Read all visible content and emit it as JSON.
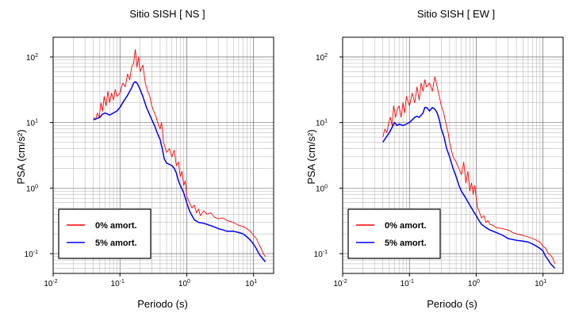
{
  "chart_data": [
    {
      "type": "line",
      "title": "Sitio SISH [ NS ]",
      "xlabel": "Periodo (s)",
      "ylabel": "PSA (cm/s²)",
      "xscale": "log",
      "yscale": "log",
      "xlim": [
        0.01,
        20
      ],
      "ylim": [
        0.05,
        200
      ],
      "x_ticks": [
        {
          "value": 0.01,
          "base": "10",
          "exp": "-2"
        },
        {
          "value": 0.1,
          "base": "10",
          "exp": "-1"
        },
        {
          "value": 1,
          "base": "10",
          "exp": "0"
        },
        {
          "value": 10,
          "base": "10",
          "exp": "1"
        }
      ],
      "y_ticks": [
        {
          "value": 0.1,
          "base": "10",
          "exp": "-1"
        },
        {
          "value": 1,
          "base": "10",
          "exp": "0"
        },
        {
          "value": 10,
          "base": "10",
          "exp": "1"
        },
        {
          "value": 100,
          "base": "10",
          "exp": "2"
        }
      ],
      "grid": true,
      "legend_position": "bottom-left",
      "series": [
        {
          "name": "0% amort.",
          "color": "#ff0000",
          "points": [
            [
              0.04,
              12
            ],
            [
              0.043,
              11
            ],
            [
              0.046,
              14
            ],
            [
              0.049,
              12
            ],
            [
              0.052,
              20
            ],
            [
              0.055,
              15
            ],
            [
              0.058,
              25
            ],
            [
              0.062,
              18
            ],
            [
              0.066,
              30
            ],
            [
              0.07,
              20
            ],
            [
              0.075,
              28
            ],
            [
              0.08,
              22
            ],
            [
              0.085,
              32
            ],
            [
              0.09,
              25
            ],
            [
              0.1,
              28
            ],
            [
              0.11,
              40
            ],
            [
              0.12,
              35
            ],
            [
              0.13,
              55
            ],
            [
              0.14,
              45
            ],
            [
              0.15,
              70
            ],
            [
              0.16,
              80
            ],
            [
              0.17,
              130
            ],
            [
              0.18,
              70
            ],
            [
              0.19,
              100
            ],
            [
              0.2,
              60
            ],
            [
              0.22,
              75
            ],
            [
              0.24,
              40
            ],
            [
              0.26,
              30
            ],
            [
              0.28,
              25
            ],
            [
              0.3,
              18
            ],
            [
              0.32,
              15
            ],
            [
              0.35,
              12
            ],
            [
              0.38,
              9
            ],
            [
              0.4,
              8
            ],
            [
              0.42,
              10
            ],
            [
              0.45,
              5
            ],
            [
              0.5,
              3.5
            ],
            [
              0.55,
              4
            ],
            [
              0.6,
              3
            ],
            [
              0.65,
              3.8
            ],
            [
              0.7,
              2.2
            ],
            [
              0.75,
              2.5
            ],
            [
              0.8,
              1.5
            ],
            [
              0.85,
              1.8
            ],
            [
              0.9,
              1.1
            ],
            [
              0.95,
              1.3
            ],
            [
              1.0,
              0.75
            ],
            [
              1.1,
              0.6
            ],
            [
              1.2,
              0.5
            ],
            [
              1.3,
              0.55
            ],
            [
              1.4,
              0.42
            ],
            [
              1.5,
              0.48
            ],
            [
              1.6,
              0.38
            ],
            [
              1.8,
              0.45
            ],
            [
              2.0,
              0.4
            ],
            [
              2.3,
              0.42
            ],
            [
              2.6,
              0.36
            ],
            [
              3.0,
              0.34
            ],
            [
              3.5,
              0.35
            ],
            [
              4.0,
              0.32
            ],
            [
              5.0,
              0.3
            ],
            [
              6.0,
              0.27
            ],
            [
              7.0,
              0.26
            ],
            [
              8.0,
              0.24
            ],
            [
              9.0,
              0.22
            ],
            [
              10.0,
              0.19
            ],
            [
              11.0,
              0.17
            ],
            [
              12.0,
              0.14
            ],
            [
              13.0,
              0.12
            ],
            [
              14.0,
              0.1
            ],
            [
              15.0,
              0.09
            ]
          ]
        },
        {
          "name": "5% amort.",
          "color": "#0000ff",
          "points": [
            [
              0.04,
              11
            ],
            [
              0.045,
              11.5
            ],
            [
              0.05,
              12
            ],
            [
              0.055,
              13.5
            ],
            [
              0.06,
              14
            ],
            [
              0.065,
              13.5
            ],
            [
              0.07,
              13
            ],
            [
              0.08,
              14
            ],
            [
              0.09,
              15
            ],
            [
              0.1,
              17
            ],
            [
              0.11,
              20
            ],
            [
              0.12,
              23
            ],
            [
              0.13,
              26
            ],
            [
              0.14,
              30
            ],
            [
              0.15,
              34
            ],
            [
              0.16,
              40
            ],
            [
              0.17,
              42
            ],
            [
              0.18,
              40
            ],
            [
              0.19,
              36
            ],
            [
              0.2,
              32
            ],
            [
              0.22,
              25
            ],
            [
              0.25,
              17
            ],
            [
              0.28,
              13
            ],
            [
              0.3,
              11
            ],
            [
              0.33,
              9
            ],
            [
              0.36,
              7
            ],
            [
              0.4,
              5.5
            ],
            [
              0.43,
              4
            ],
            [
              0.46,
              2.8
            ],
            [
              0.5,
              2.4
            ],
            [
              0.55,
              2.3
            ],
            [
              0.6,
              2.2
            ],
            [
              0.65,
              2.0
            ],
            [
              0.7,
              1.7
            ],
            [
              0.75,
              1.3
            ],
            [
              0.8,
              1.1
            ],
            [
              0.9,
              0.85
            ],
            [
              1.0,
              0.6
            ],
            [
              1.1,
              0.45
            ],
            [
              1.2,
              0.38
            ],
            [
              1.3,
              0.33
            ],
            [
              1.5,
              0.3
            ],
            [
              1.8,
              0.29
            ],
            [
              2.0,
              0.28
            ],
            [
              2.5,
              0.26
            ],
            [
              3.0,
              0.24
            ],
            [
              3.5,
              0.23
            ],
            [
              4.0,
              0.22
            ],
            [
              5.0,
              0.22
            ],
            [
              6.0,
              0.21
            ],
            [
              7.0,
              0.2
            ],
            [
              8.0,
              0.18
            ],
            [
              9.0,
              0.16
            ],
            [
              10.0,
              0.14
            ],
            [
              11.0,
              0.12
            ],
            [
              12.0,
              0.1
            ],
            [
              13.0,
              0.09
            ],
            [
              15.0,
              0.075
            ]
          ]
        }
      ]
    },
    {
      "type": "line",
      "title": "Sitio SISH [ EW ]",
      "xlabel": "Periodo (s)",
      "ylabel": "PSA (cm/s²)",
      "xscale": "log",
      "yscale": "log",
      "xlim": [
        0.01,
        20
      ],
      "ylim": [
        0.05,
        200
      ],
      "x_ticks": [
        {
          "value": 0.01,
          "base": "10",
          "exp": "-2"
        },
        {
          "value": 0.1,
          "base": "10",
          "exp": "-1"
        },
        {
          "value": 1,
          "base": "10",
          "exp": "0"
        },
        {
          "value": 10,
          "base": "10",
          "exp": "1"
        }
      ],
      "y_ticks": [
        {
          "value": 0.1,
          "base": "10",
          "exp": "-1"
        },
        {
          "value": 1,
          "base": "10",
          "exp": "0"
        },
        {
          "value": 10,
          "base": "10",
          "exp": "1"
        },
        {
          "value": 100,
          "base": "10",
          "exp": "2"
        }
      ],
      "grid": true,
      "legend_position": "bottom-left",
      "series": [
        {
          "name": "0% amort.",
          "color": "#ff0000",
          "points": [
            [
              0.04,
              6
            ],
            [
              0.043,
              8
            ],
            [
              0.046,
              7
            ],
            [
              0.049,
              10
            ],
            [
              0.052,
              12
            ],
            [
              0.055,
              9
            ],
            [
              0.058,
              18
            ],
            [
              0.062,
              12
            ],
            [
              0.066,
              16
            ],
            [
              0.07,
              18
            ],
            [
              0.075,
              12
            ],
            [
              0.08,
              20
            ],
            [
              0.085,
              14
            ],
            [
              0.09,
              25
            ],
            [
              0.1,
              18
            ],
            [
              0.11,
              28
            ],
            [
              0.12,
              20
            ],
            [
              0.13,
              35
            ],
            [
              0.14,
              22
            ],
            [
              0.15,
              40
            ],
            [
              0.16,
              30
            ],
            [
              0.17,
              45
            ],
            [
              0.18,
              35
            ],
            [
              0.2,
              40
            ],
            [
              0.22,
              30
            ],
            [
              0.24,
              50
            ],
            [
              0.26,
              35
            ],
            [
              0.28,
              25
            ],
            [
              0.3,
              18
            ],
            [
              0.32,
              15
            ],
            [
              0.35,
              10
            ],
            [
              0.38,
              7
            ],
            [
              0.4,
              5
            ],
            [
              0.42,
              4
            ],
            [
              0.45,
              3
            ],
            [
              0.5,
              2.5
            ],
            [
              0.55,
              2
            ],
            [
              0.6,
              1.6
            ],
            [
              0.65,
              2.5
            ],
            [
              0.7,
              1.2
            ],
            [
              0.75,
              1.8
            ],
            [
              0.8,
              0.9
            ],
            [
              0.85,
              1.2
            ],
            [
              0.9,
              0.8
            ],
            [
              0.95,
              1.1
            ],
            [
              1.0,
              0.7
            ],
            [
              1.05,
              0.5
            ],
            [
              1.1,
              0.45
            ],
            [
              1.2,
              0.35
            ],
            [
              1.3,
              0.38
            ],
            [
              1.4,
              0.3
            ],
            [
              1.5,
              0.32
            ],
            [
              1.6,
              0.28
            ],
            [
              1.8,
              0.27
            ],
            [
              2.0,
              0.25
            ],
            [
              2.5,
              0.24
            ],
            [
              3.0,
              0.23
            ],
            [
              3.5,
              0.21
            ],
            [
              4.0,
              0.2
            ],
            [
              5.0,
              0.19
            ],
            [
              6.0,
              0.18
            ],
            [
              7.0,
              0.17
            ],
            [
              8.0,
              0.16
            ],
            [
              9.0,
              0.15
            ],
            [
              10.0,
              0.13
            ],
            [
              11.0,
              0.12
            ],
            [
              12.0,
              0.1
            ],
            [
              13.0,
              0.095
            ],
            [
              14.0,
              0.085
            ],
            [
              15.0,
              0.07
            ]
          ]
        },
        {
          "name": "5% amort.",
          "color": "#0000ff",
          "points": [
            [
              0.04,
              5
            ],
            [
              0.045,
              6
            ],
            [
              0.05,
              7
            ],
            [
              0.055,
              8.5
            ],
            [
              0.06,
              10
            ],
            [
              0.065,
              9
            ],
            [
              0.07,
              9.5
            ],
            [
              0.08,
              9
            ],
            [
              0.09,
              9.5
            ],
            [
              0.1,
              10
            ],
            [
              0.11,
              11
            ],
            [
              0.12,
              12
            ],
            [
              0.13,
              12.5
            ],
            [
              0.14,
              12
            ],
            [
              0.15,
              13
            ],
            [
              0.16,
              14
            ],
            [
              0.17,
              17
            ],
            [
              0.18,
              17
            ],
            [
              0.19,
              16
            ],
            [
              0.2,
              15
            ],
            [
              0.22,
              17
            ],
            [
              0.24,
              16
            ],
            [
              0.26,
              14
            ],
            [
              0.28,
              11
            ],
            [
              0.3,
              8
            ],
            [
              0.33,
              6
            ],
            [
              0.36,
              4
            ],
            [
              0.4,
              3
            ],
            [
              0.45,
              2
            ],
            [
              0.5,
              1.5
            ],
            [
              0.55,
              1.1
            ],
            [
              0.6,
              0.9
            ],
            [
              0.7,
              0.7
            ],
            [
              0.8,
              0.55
            ],
            [
              0.9,
              0.45
            ],
            [
              1.0,
              0.38
            ],
            [
              1.1,
              0.32
            ],
            [
              1.2,
              0.28
            ],
            [
              1.4,
              0.25
            ],
            [
              1.6,
              0.23
            ],
            [
              2.0,
              0.21
            ],
            [
              2.5,
              0.19
            ],
            [
              3.0,
              0.17
            ],
            [
              4.0,
              0.16
            ],
            [
              5.0,
              0.155
            ],
            [
              6.0,
              0.15
            ],
            [
              7.0,
              0.14
            ],
            [
              8.0,
              0.13
            ],
            [
              9.0,
              0.12
            ],
            [
              10.0,
              0.11
            ],
            [
              11.0,
              0.09
            ],
            [
              12.0,
              0.08
            ],
            [
              13.0,
              0.07
            ],
            [
              15.0,
              0.06
            ]
          ]
        }
      ]
    }
  ]
}
